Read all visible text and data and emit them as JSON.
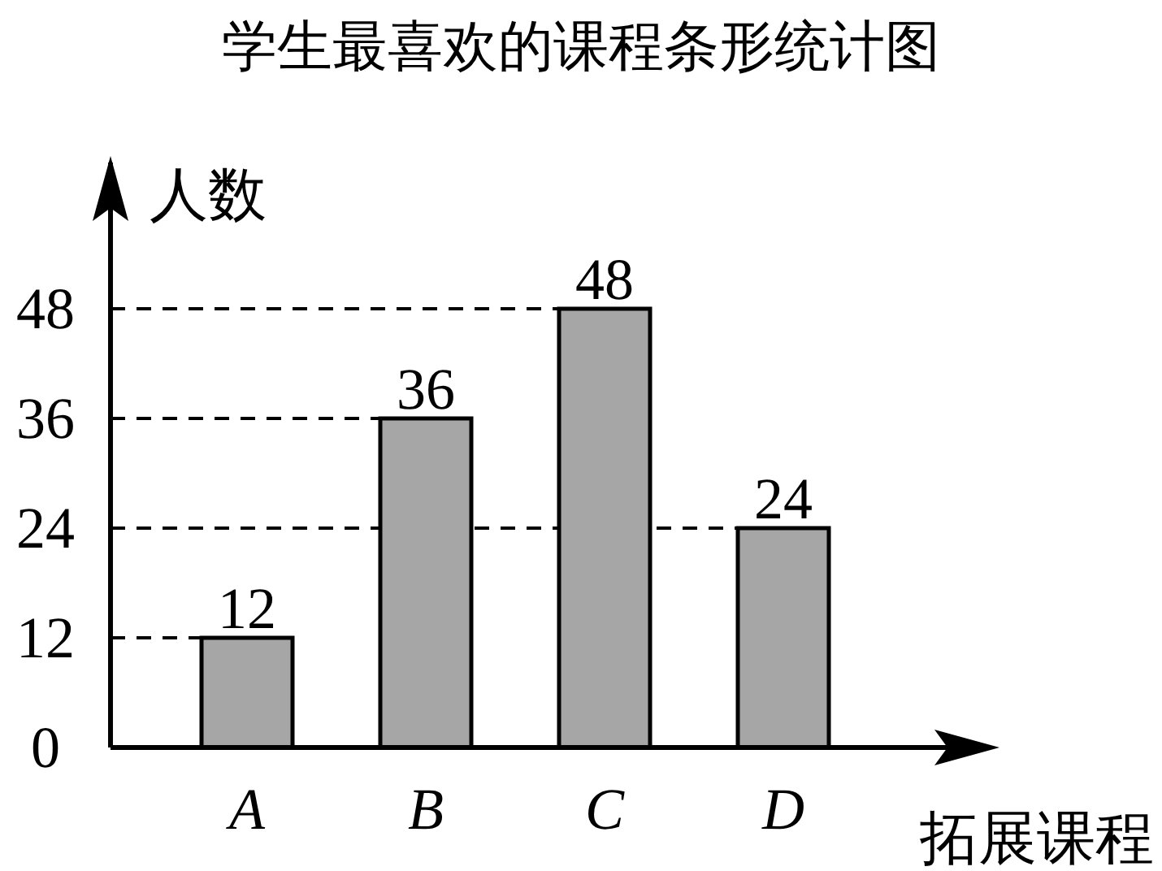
{
  "chart_data": {
    "type": "bar",
    "title": "学生最喜欢的课程条形统计图",
    "xlabel": "拓展课程",
    "ylabel": "人数",
    "categories": [
      "*A*",
      "*B*",
      "*C*",
      "*D*"
    ],
    "values": [
      12,
      36,
      48,
      24
    ],
    "color": "#a6a6a6",
    "ylim": [
      0,
      64
    ],
    "yticks": [
      0,
      12,
      24,
      36,
      48
    ],
    "grid": "y",
    "data_labels": true
  }
}
